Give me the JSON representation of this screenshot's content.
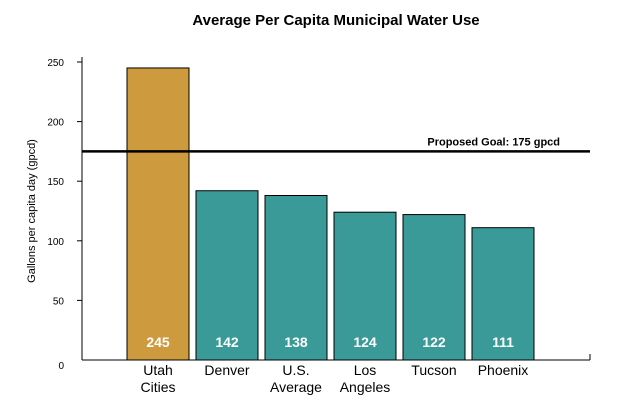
{
  "chart_data": {
    "type": "bar",
    "title": "Average Per Capita Municipal Water Use",
    "ylabel": "Gallons per capita day (gpcd)",
    "xlabel": "",
    "ylim": [
      0,
      250
    ],
    "yticks": [
      0,
      50,
      100,
      150,
      200,
      250
    ],
    "categories": [
      [
        "Utah",
        "Cities"
      ],
      [
        "Denver"
      ],
      [
        "U.S.",
        "Average"
      ],
      [
        "Los",
        "Angeles"
      ],
      [
        "Tucson"
      ],
      [
        "Phoenix"
      ]
    ],
    "values": [
      245,
      142,
      138,
      124,
      122,
      111
    ],
    "value_labels": [
      "245",
      "142",
      "138",
      "124",
      "122",
      "111"
    ],
    "bar_colors": [
      "#CD9A3E",
      "#3A9A98",
      "#3A9A98",
      "#3A9A98",
      "#3A9A98",
      "#3A9A98"
    ],
    "goal": {
      "value": 175,
      "label": "Proposed Goal: 175 gpcd"
    },
    "grid": false,
    "legend": "none"
  }
}
